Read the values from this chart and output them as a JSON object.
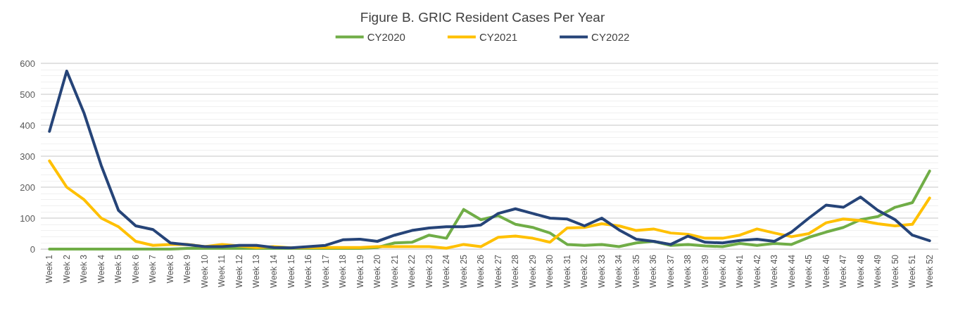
{
  "chart_data": {
    "type": "line",
    "title": "Figure B. GRIC Resident Cases Per Year",
    "categories": [
      "Week 1",
      "Week 2",
      "Week 3",
      "Week 4",
      "Week 5",
      "Week 6",
      "Week 7",
      "Week 8",
      "Week 9",
      "Week 10",
      "Week 11",
      "Week 12",
      "Week 13",
      "Week 14",
      "Week 15",
      "Week 16",
      "Week 17",
      "Week 18",
      "Week 19",
      "Week 20",
      "Week 21",
      "Week 22",
      "Week 23",
      "Week 24",
      "Week 25",
      "Week 26",
      "Week 27",
      "Week 28",
      "Week 29",
      "Week 30",
      "Week 31",
      "Week 32",
      "Week 33",
      "Week 34",
      "Week 35",
      "Week 36",
      "Week 37",
      "Week 38",
      "Week 39",
      "Week 40",
      "Week 41",
      "Week 42",
      "Week 43",
      "Week 44",
      "Week 45",
      "Week 46",
      "Week 47",
      "Week 48",
      "Week 49",
      "Week 50",
      "Week 51",
      "Week 52"
    ],
    "series": [
      {
        "name": "CY2020",
        "color": "#70ad47",
        "values": [
          0,
          0,
          0,
          0,
          0,
          0,
          0,
          0,
          2,
          2,
          2,
          2,
          2,
          2,
          2,
          2,
          2,
          2,
          2,
          5,
          20,
          22,
          45,
          35,
          128,
          95,
          108,
          80,
          70,
          52,
          15,
          12,
          15,
          8,
          20,
          25,
          12,
          15,
          10,
          8,
          18,
          12,
          18,
          15,
          38,
          55,
          70,
          95,
          105,
          135,
          150,
          252
        ]
      },
      {
        "name": "CY2021",
        "color": "#ffc000",
        "values": [
          285,
          200,
          160,
          100,
          72,
          25,
          12,
          15,
          15,
          8,
          15,
          10,
          5,
          8,
          4,
          5,
          5,
          5,
          5,
          8,
          8,
          8,
          8,
          3,
          15,
          8,
          38,
          42,
          35,
          22,
          68,
          70,
          82,
          75,
          60,
          65,
          52,
          48,
          35,
          35,
          45,
          65,
          52,
          40,
          50,
          85,
          97,
          92,
          82,
          75,
          80,
          165
        ]
      },
      {
        "name": "CY2022",
        "color": "#264478",
        "values": [
          380,
          575,
          440,
          270,
          125,
          75,
          63,
          20,
          14,
          8,
          8,
          12,
          12,
          5,
          4,
          8,
          12,
          30,
          32,
          25,
          45,
          60,
          68,
          72,
          72,
          78,
          115,
          130,
          115,
          100,
          97,
          75,
          100,
          62,
          32,
          25,
          15,
          42,
          22,
          20,
          28,
          32,
          25,
          55,
          100,
          142,
          135,
          168,
          125,
          95,
          45,
          27
        ]
      }
    ],
    "ylim": [
      0,
      600
    ],
    "yticks": [
      0,
      100,
      200,
      300,
      400,
      500,
      600
    ],
    "grid": "y",
    "legend": "top",
    "marker": "none",
    "line_style": "solid"
  }
}
